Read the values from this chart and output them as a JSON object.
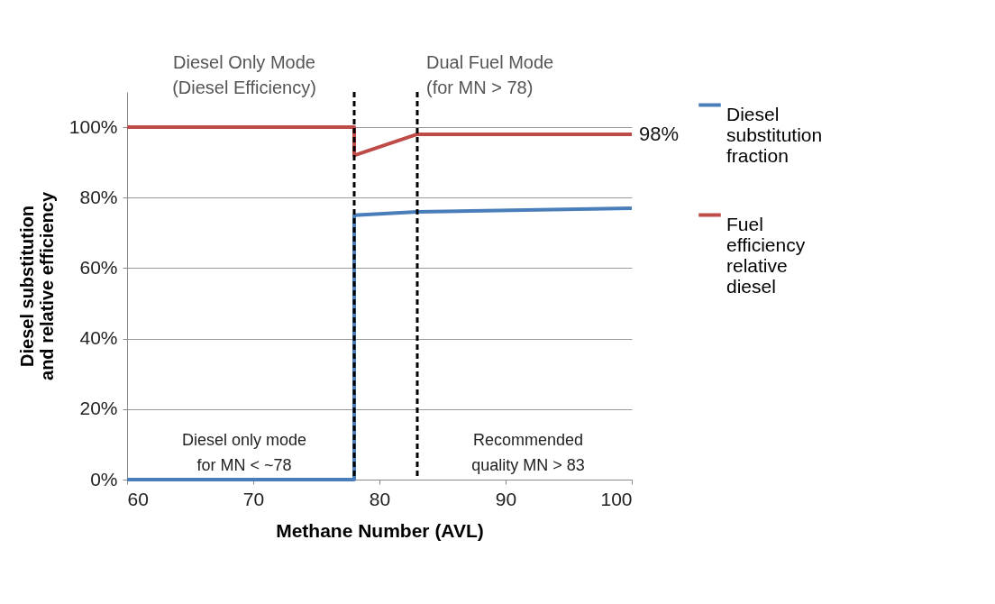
{
  "chart_data": {
    "type": "line",
    "xlabel": "Methane Number (AVL)",
    "ylabel": "Diesel substitution\nand relative efficiency",
    "xlim": [
      60,
      100
    ],
    "xticks": [
      60,
      70,
      80,
      90,
      100
    ],
    "ylim": [
      0,
      110
    ],
    "yticks": [
      {
        "value": 0,
        "label": "0%"
      },
      {
        "value": 20,
        "label": "20%"
      },
      {
        "value": 40,
        "label": "40%"
      },
      {
        "value": 60,
        "label": "60%"
      },
      {
        "value": 80,
        "label": "80%"
      },
      {
        "value": 100,
        "label": "100%"
      }
    ],
    "grid": "y",
    "legend": "right",
    "line_style": "solid",
    "marker": "none",
    "series": [
      {
        "name": "Diesel substitution fraction",
        "color": "#4a7ebb",
        "x": [
          60,
          78,
          78,
          83,
          100
        ],
        "values": [
          0,
          0,
          75,
          76,
          77
        ]
      },
      {
        "name": "Fuel efficiency relative diesel",
        "color": "#be4b48",
        "x": [
          60,
          78,
          78,
          83,
          100
        ],
        "values": [
          100,
          100,
          92,
          98,
          98
        ]
      }
    ],
    "ref_lines": [
      {
        "axis": "x",
        "value": 78,
        "color": "#000000",
        "line_style": "dashed"
      },
      {
        "axis": "x",
        "value": 83,
        "color": "#000000",
        "line_style": "dashed"
      }
    ],
    "annotations": [
      "Diesel Only Mode\n(Diesel Efficiency)",
      "Dual Fuel Mode\n(for MN > 78)",
      "Diesel only mode\nfor MN < ~78",
      "Recommended\nquality MN > 83",
      {
        "text": "98%",
        "x": 100,
        "y": 98
      }
    ]
  }
}
